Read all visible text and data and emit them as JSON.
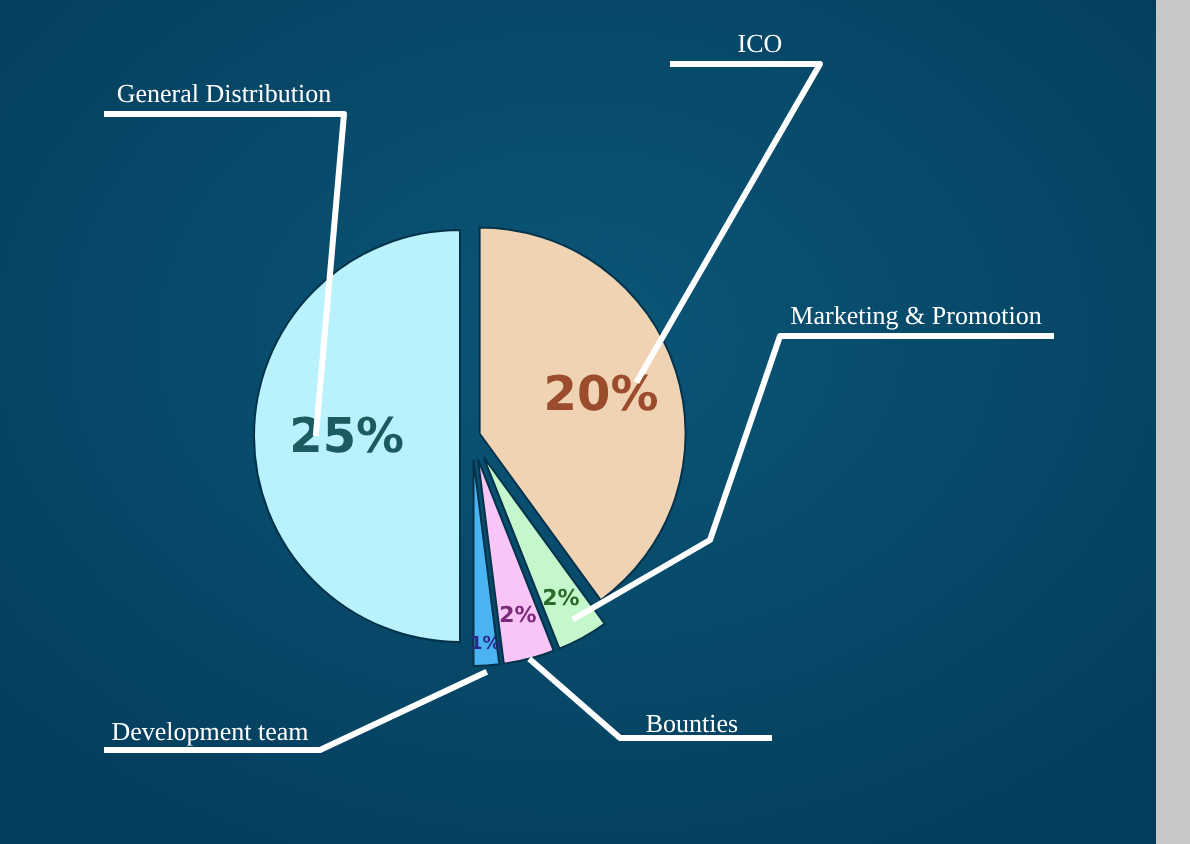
{
  "chart_data": {
    "type": "pie",
    "categories": [
      "ICO",
      "Marketing & Promotion",
      "Bounties",
      "Development team",
      "General Distribution"
    ],
    "values": [
      20,
      2,
      2,
      1,
      25
    ],
    "colors": [
      "#f0d3b3",
      "#c5f7cd",
      "#f9c5f7",
      "#4ab4f2",
      "#b9f1fd"
    ],
    "value_labels": [
      "20%",
      "2%",
      "2%",
      "1%",
      "25%"
    ]
  }
}
